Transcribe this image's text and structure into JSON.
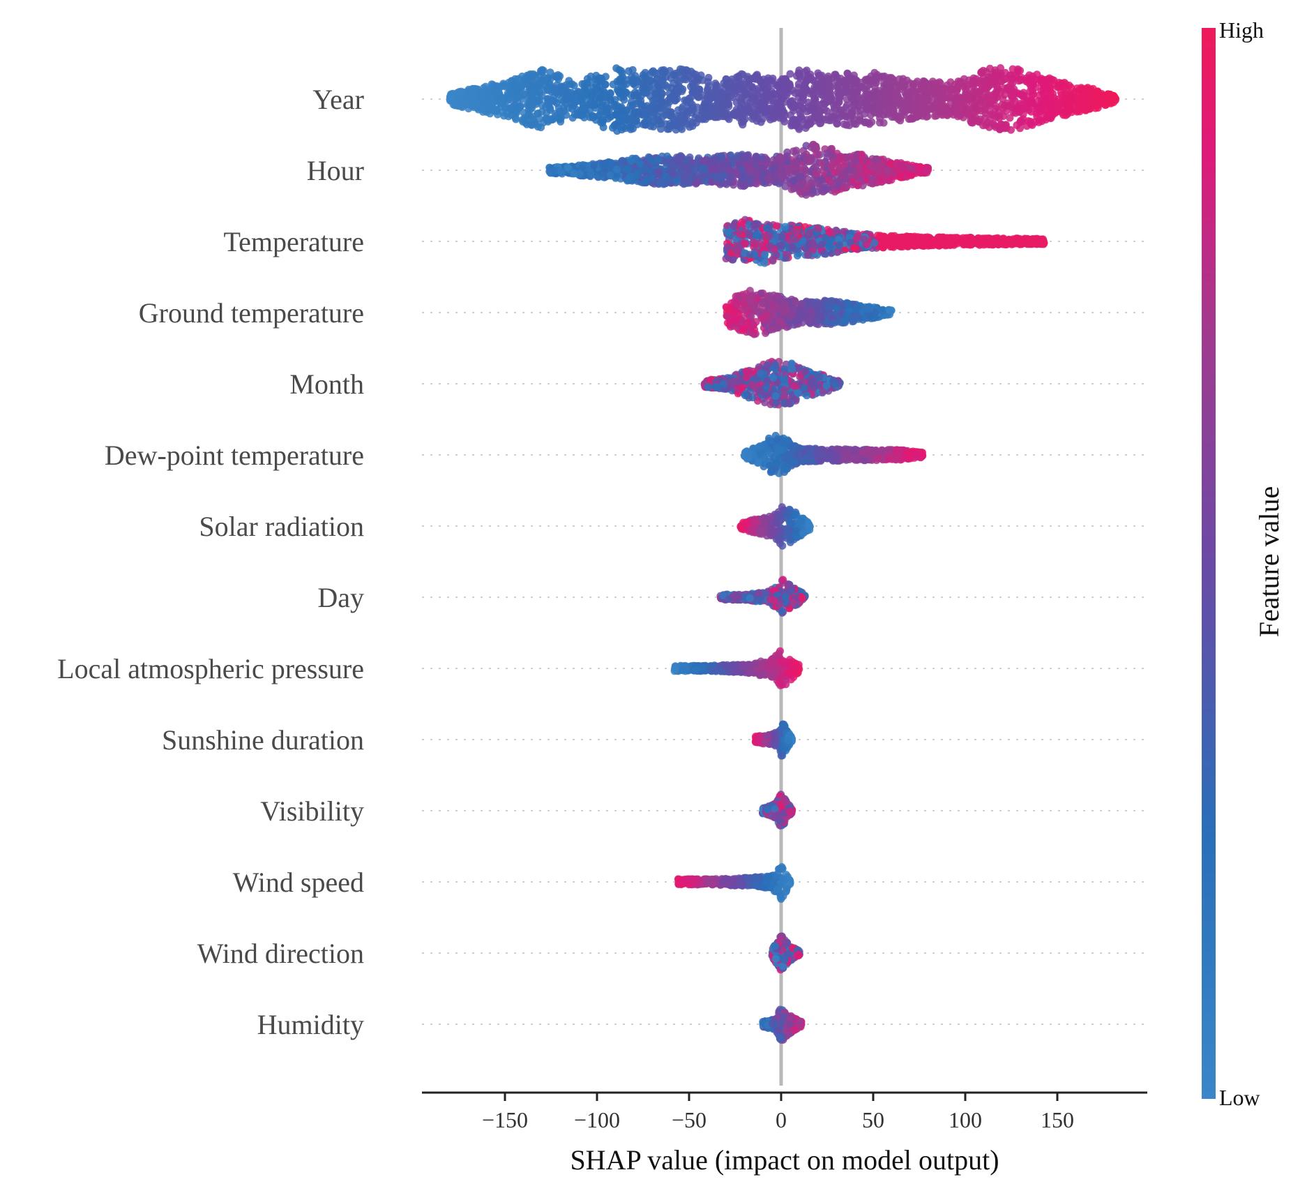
{
  "chart_data": {
    "type": "scatter",
    "subtype": "shap-beeswarm",
    "xlabel": "SHAP value (impact on model output)",
    "xlim": [
      -195,
      200
    ],
    "xticks": [
      -150,
      -100,
      -50,
      0,
      50,
      100,
      150
    ],
    "xtick_labels": [
      "−150",
      "−100",
      "−50",
      "0",
      "50",
      "100",
      "150"
    ],
    "colorbar": {
      "label": "Feature value",
      "high_label": "High",
      "low_label": "Low",
      "low_color": "#3a86c8",
      "high_color": "#ee1a5a"
    },
    "features": [
      {
        "name": "Year",
        "min": -180,
        "max": 182,
        "peak": 7.0,
        "high_side": "right",
        "sign": 1.0,
        "dens": [
          [
            -180,
            0.15
          ],
          [
            -150,
            0.55
          ],
          [
            -130,
            0.9
          ],
          [
            -110,
            0.5
          ],
          [
            -92,
            1.0
          ],
          [
            -75,
            0.85
          ],
          [
            -55,
            0.95
          ],
          [
            -35,
            0.55
          ],
          [
            -20,
            0.8
          ],
          [
            0,
            0.6
          ],
          [
            8,
            0.95
          ],
          [
            25,
            0.7
          ],
          [
            45,
            0.85
          ],
          [
            60,
            0.7
          ],
          [
            75,
            0.55
          ],
          [
            95,
            0.5
          ],
          [
            115,
            1.0
          ],
          [
            130,
            0.9
          ],
          [
            150,
            0.55
          ],
          [
            170,
            0.3
          ],
          [
            182,
            0.08
          ]
        ]
      },
      {
        "name": "Hour",
        "min": -126,
        "max": 80,
        "peak": 5.5,
        "high_side": "right",
        "sign": 0.75,
        "dens": [
          [
            -126,
            0.1
          ],
          [
            -100,
            0.25
          ],
          [
            -80,
            0.45
          ],
          [
            -60,
            0.55
          ],
          [
            -40,
            0.5
          ],
          [
            -20,
            0.6
          ],
          [
            -5,
            0.45
          ],
          [
            10,
            0.85
          ],
          [
            15,
            1.0
          ],
          [
            30,
            0.8
          ],
          [
            50,
            0.5
          ],
          [
            70,
            0.22
          ],
          [
            80,
            0.05
          ]
        ]
      },
      {
        "name": "Temperature",
        "min": -30,
        "max": 143,
        "peak": 5.0,
        "high_side": "split",
        "split_at": 52,
        "sign": 0.0,
        "dens": [
          [
            -30,
            0.7
          ],
          [
            -15,
            1.0
          ],
          [
            0,
            0.7
          ],
          [
            20,
            0.55
          ],
          [
            40,
            0.35
          ],
          [
            55,
            0.25
          ],
          [
            80,
            0.18
          ],
          [
            110,
            0.15
          ],
          [
            130,
            0.12
          ],
          [
            143,
            0.05
          ]
        ]
      },
      {
        "name": "Ground temperature",
        "min": -30,
        "max": 60,
        "peak": 5.0,
        "high_side": "left",
        "sign": -0.8,
        "dens": [
          [
            -30,
            0.5
          ],
          [
            -15,
            1.0
          ],
          [
            -5,
            0.75
          ],
          [
            10,
            0.45
          ],
          [
            25,
            0.5
          ],
          [
            40,
            0.35
          ],
          [
            52,
            0.2
          ],
          [
            60,
            0.05
          ]
        ]
      },
      {
        "name": "Month",
        "min": -42,
        "max": 32,
        "peak": 4.5,
        "high_side": "left",
        "sign": -0.2,
        "dens": [
          [
            -42,
            0.15
          ],
          [
            -30,
            0.25
          ],
          [
            -15,
            0.7
          ],
          [
            -5,
            1.0
          ],
          [
            5,
            0.95
          ],
          [
            15,
            0.55
          ],
          [
            25,
            0.35
          ],
          [
            32,
            0.1
          ]
        ]
      },
      {
        "name": "Dew-point temperature",
        "min": -20,
        "max": 77,
        "peak": 4.5,
        "high_side": "right",
        "sign": 0.85,
        "dens": [
          [
            -20,
            0.12
          ],
          [
            -10,
            0.5
          ],
          [
            -3,
            1.0
          ],
          [
            2,
            0.75
          ],
          [
            10,
            0.3
          ],
          [
            40,
            0.25
          ],
          [
            65,
            0.22
          ],
          [
            77,
            0.1
          ]
        ]
      },
      {
        "name": "Solar radiation",
        "min": -22,
        "max": 16,
        "peak": 4.5,
        "high_side": "left",
        "sign": -0.9,
        "dens": [
          [
            -22,
            0.15
          ],
          [
            -12,
            0.35
          ],
          [
            -4,
            0.5
          ],
          [
            2,
            1.0
          ],
          [
            8,
            0.6
          ],
          [
            16,
            0.15
          ]
        ]
      },
      {
        "name": "Day",
        "min": -33,
        "max": 13,
        "peak": 4.0,
        "high_side": "right",
        "sign": 0.2,
        "dens": [
          [
            -33,
            0.12
          ],
          [
            -20,
            0.15
          ],
          [
            -8,
            0.25
          ],
          [
            -2,
            0.55
          ],
          [
            1,
            1.0
          ],
          [
            6,
            0.5
          ],
          [
            13,
            0.15
          ]
        ]
      },
      {
        "name": "Local atmospheric pressure",
        "min": -58,
        "max": 10,
        "peak": 4.0,
        "high_side": "right",
        "sign": 0.9,
        "dens": [
          [
            -58,
            0.12
          ],
          [
            -40,
            0.14
          ],
          [
            -20,
            0.2
          ],
          [
            -5,
            0.45
          ],
          [
            0,
            1.0
          ],
          [
            5,
            0.6
          ],
          [
            10,
            0.15
          ]
        ]
      },
      {
        "name": "Sunshine duration",
        "min": -14,
        "max": 6,
        "peak": 4.0,
        "high_side": "left",
        "sign": -0.9,
        "dens": [
          [
            -14,
            0.15
          ],
          [
            -6,
            0.25
          ],
          [
            -1,
            0.4
          ],
          [
            0,
            1.0
          ],
          [
            3,
            0.5
          ],
          [
            6,
            0.1
          ]
        ]
      },
      {
        "name": "Visibility",
        "min": -10,
        "max": 6,
        "peak": 3.5,
        "high_side": "right",
        "sign": 0.2,
        "dens": [
          [
            -10,
            0.12
          ],
          [
            -3,
            0.4
          ],
          [
            0,
            1.0
          ],
          [
            3,
            0.5
          ],
          [
            6,
            0.1
          ]
        ]
      },
      {
        "name": "Wind speed",
        "min": -56,
        "max": 5,
        "peak": 3.5,
        "high_side": "left",
        "sign": -0.9,
        "dens": [
          [
            -56,
            0.1
          ],
          [
            -40,
            0.15
          ],
          [
            -20,
            0.22
          ],
          [
            -5,
            0.35
          ],
          [
            0,
            1.0
          ],
          [
            3,
            0.5
          ],
          [
            5,
            0.1
          ]
        ]
      },
      {
        "name": "Wind direction",
        "min": -5,
        "max": 10,
        "peak": 3.5,
        "high_side": "left",
        "sign": 0.0,
        "dens": [
          [
            -5,
            0.2
          ],
          [
            0,
            1.0
          ],
          [
            4,
            0.5
          ],
          [
            10,
            0.1
          ]
        ]
      },
      {
        "name": "Humidity",
        "min": -10,
        "max": 11,
        "peak": 3.5,
        "high_side": "right",
        "sign": 0.6,
        "dens": [
          [
            -10,
            0.15
          ],
          [
            -3,
            0.3
          ],
          [
            0,
            1.0
          ],
          [
            4,
            0.55
          ],
          [
            11,
            0.12
          ]
        ]
      }
    ]
  }
}
